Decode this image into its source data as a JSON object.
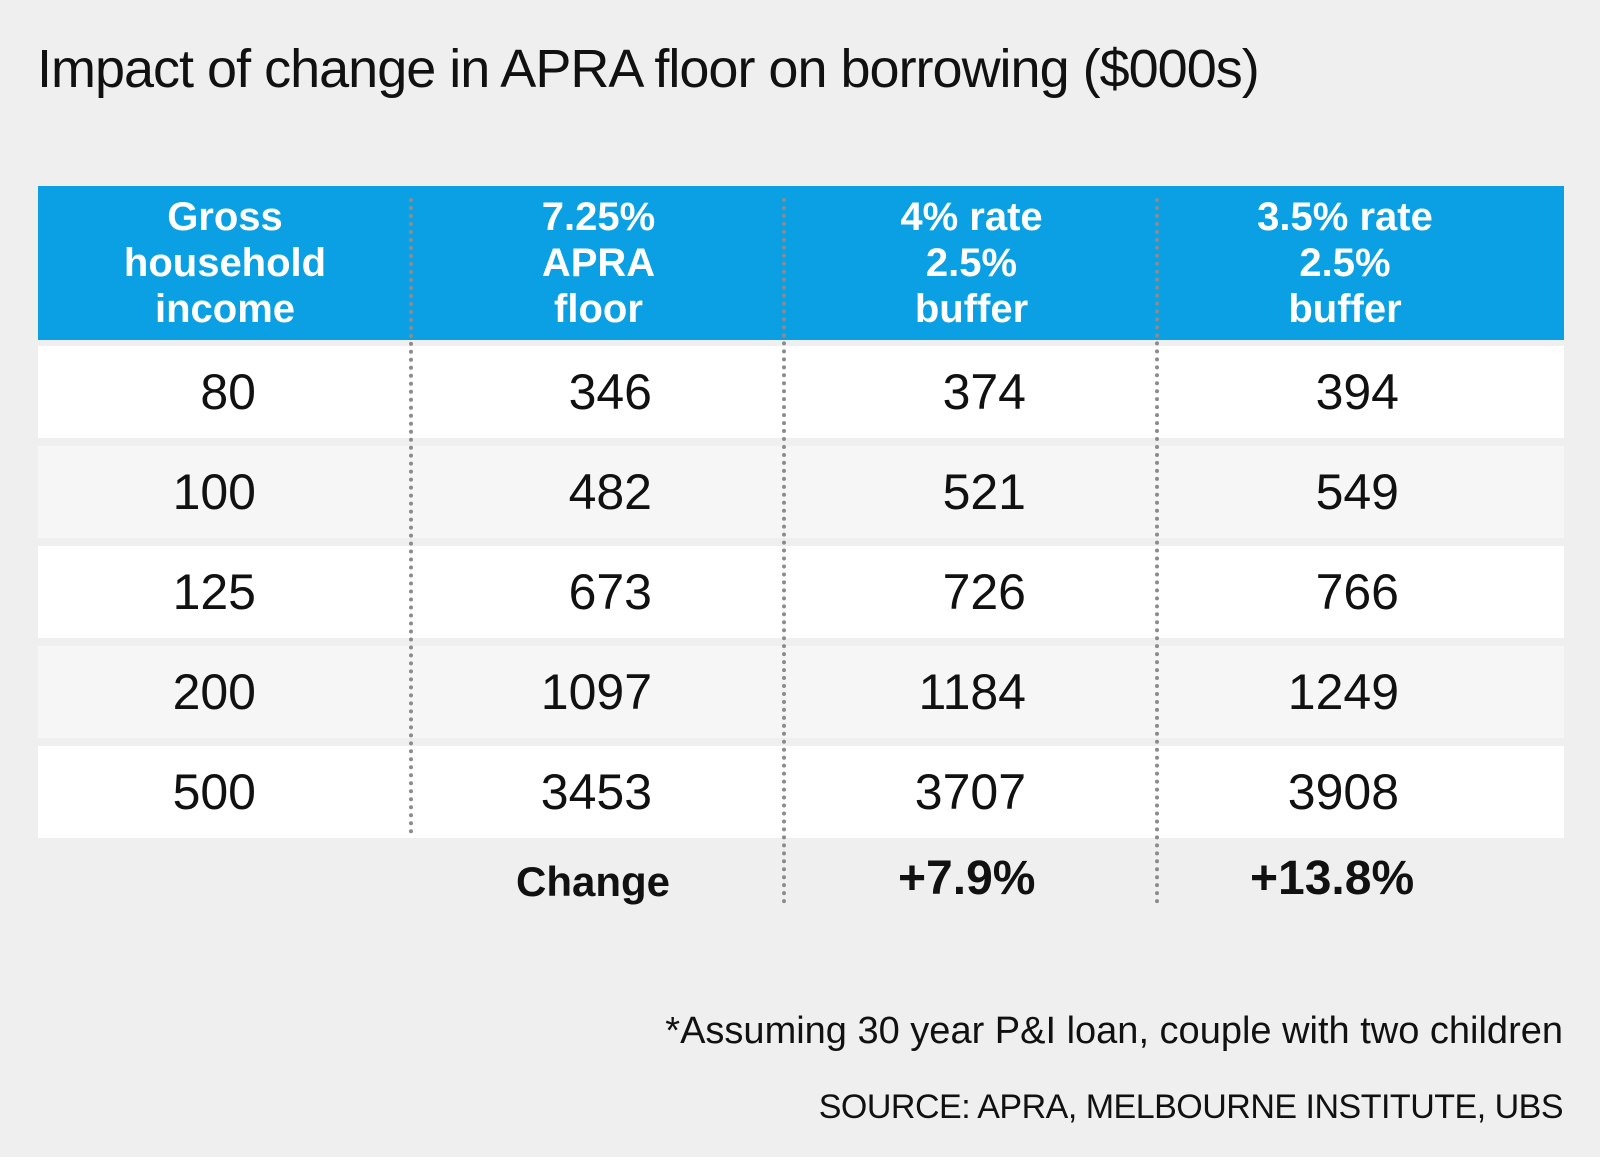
{
  "title": "Impact of change in APRA floor on borrowing ($000s)",
  "colors": {
    "header_bg": "#0aa0e3",
    "header_text": "#ffffff",
    "background": "#efefef",
    "row_alt_1": "#ffffff",
    "row_alt_2": "#f6f6f6"
  },
  "chart_data": {
    "type": "table",
    "title": "Impact of change in APRA floor on borrowing ($000s)",
    "columns": [
      "Gross\nhousehold\nincome",
      "7.25%\nAPRA\nfloor",
      "4% rate\n2.5%\nbuffer",
      "3.5% rate\n2.5%\nbuffer"
    ],
    "rows": [
      [
        "80",
        "346",
        "374",
        "394"
      ],
      [
        "100",
        "482",
        "521",
        "549"
      ],
      [
        "125",
        "673",
        "726",
        "766"
      ],
      [
        "200",
        "1097",
        "1184",
        "1249"
      ],
      [
        "500",
        "3453",
        "3707",
        "3908"
      ]
    ],
    "change": {
      "label": "Change",
      "values": [
        "+7.9%",
        "+13.8%"
      ]
    }
  },
  "footnote": "*Assuming 30 year P&I loan, couple with two children",
  "source": "SOURCE: APRA, MELBOURNE INSTITUTE, UBS"
}
